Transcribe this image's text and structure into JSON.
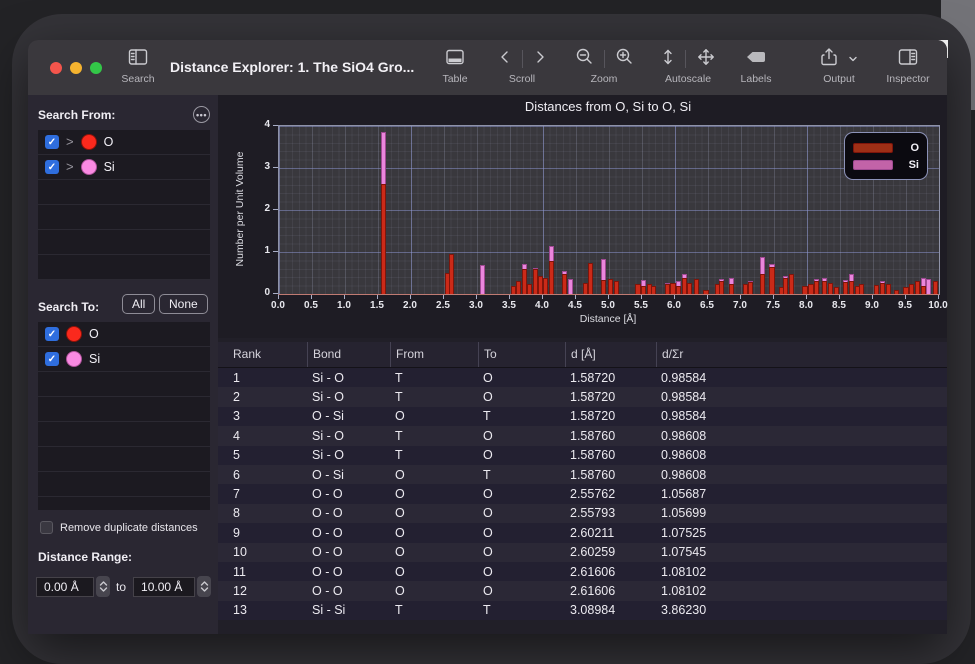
{
  "window": {
    "title": "Distance Explorer: 1. The SiO4 Gro..."
  },
  "toolbar": {
    "search": "Search",
    "table": "Table",
    "scroll": "Scroll",
    "zoom": "Zoom",
    "autoscale": "Autoscale",
    "labels": "Labels",
    "output": "Output",
    "inspector": "Inspector"
  },
  "colors": {
    "checkbox_blue": "#2f6ede"
  },
  "sidebar": {
    "search_from": {
      "label": "Search From:",
      "rows": [
        {
          "element": "O",
          "checked": true,
          "color": "#fa291d",
          "rim": "#8f1309"
        },
        {
          "element": "Si",
          "checked": true,
          "color": "#f98ae2",
          "rim": "#b0549c"
        }
      ],
      "empty_rows": 4
    },
    "search_to": {
      "label": "Search To:",
      "all": "All",
      "none": "None",
      "rows": [
        {
          "element": "O",
          "checked": true,
          "color": "#fa291d",
          "rim": "#8f1309"
        },
        {
          "element": "Si",
          "checked": true,
          "color": "#f98ae2",
          "rim": "#b0549c"
        }
      ],
      "empty_rows": 5
    },
    "remove_duplicates": "Remove duplicate distances",
    "distance_range": {
      "label": "Distance Range:",
      "min": "0.00 Å",
      "to": "to",
      "max": "10.00 Å"
    }
  },
  "chart_data": {
    "type": "bar",
    "title": "Distances from O, Si to O, Si",
    "xlabel": "Distance [Å]",
    "ylabel": "Number per Unit Volume",
    "xlim": [
      0,
      10
    ],
    "ylim": [
      0,
      4
    ],
    "x_ticks": [
      "0.0",
      "0.5",
      "1.0",
      "1.5",
      "2.0",
      "2.5",
      "3.0",
      "3.5",
      "4.0",
      "4.5",
      "5.0",
      "5.5",
      "6.0",
      "6.5",
      "7.0",
      "7.5",
      "8.0",
      "8.5",
      "9.0",
      "9.5",
      "10.0"
    ],
    "y_ticks": [
      "0",
      "1",
      "2",
      "3",
      "4"
    ],
    "bar_width_angstrom": 0.08,
    "legend_position": "top-right",
    "grid": true,
    "series": [
      {
        "name": "O",
        "fill": "#cb2a18",
        "edge": "#7e150b",
        "legend_fill": "#9e2f16",
        "bars": [
          [
            1.59,
            2.62
          ],
          [
            2.56,
            0.5
          ],
          [
            2.61,
            0.95
          ],
          [
            3.55,
            0.19
          ],
          [
            3.63,
            0.31
          ],
          [
            3.72,
            0.6
          ],
          [
            3.8,
            0.24
          ],
          [
            3.88,
            0.59
          ],
          [
            3.96,
            0.43
          ],
          [
            4.04,
            0.39
          ],
          [
            4.13,
            0.79
          ],
          [
            4.33,
            0.48
          ],
          [
            4.65,
            0.27
          ],
          [
            4.72,
            0.75
          ],
          [
            4.92,
            0.33
          ],
          [
            5.02,
            0.35
          ],
          [
            5.11,
            0.31
          ],
          [
            5.44,
            0.23
          ],
          [
            5.52,
            0.2
          ],
          [
            5.61,
            0.23
          ],
          [
            5.68,
            0.19
          ],
          [
            5.89,
            0.23
          ],
          [
            5.97,
            0.27
          ],
          [
            6.05,
            0.2
          ],
          [
            6.14,
            0.39
          ],
          [
            6.22,
            0.27
          ],
          [
            6.32,
            0.35
          ],
          [
            6.47,
            0.1
          ],
          [
            6.64,
            0.23
          ],
          [
            6.71,
            0.31
          ],
          [
            6.86,
            0.25
          ],
          [
            7.07,
            0.23
          ],
          [
            7.14,
            0.29
          ],
          [
            7.33,
            0.47
          ],
          [
            7.47,
            0.64
          ],
          [
            7.62,
            0.17
          ],
          [
            7.67,
            0.39
          ],
          [
            7.77,
            0.47
          ],
          [
            7.97,
            0.19
          ],
          [
            8.06,
            0.23
          ],
          [
            8.15,
            0.31
          ],
          [
            8.27,
            0.31
          ],
          [
            8.35,
            0.27
          ],
          [
            8.45,
            0.17
          ],
          [
            8.59,
            0.29
          ],
          [
            8.67,
            0.31
          ],
          [
            8.76,
            0.19
          ],
          [
            8.82,
            0.25
          ],
          [
            9.05,
            0.21
          ],
          [
            9.14,
            0.27
          ],
          [
            9.23,
            0.23
          ],
          [
            9.35,
            0.1
          ],
          [
            9.5,
            0.17
          ],
          [
            9.59,
            0.23
          ],
          [
            9.67,
            0.31
          ],
          [
            9.77,
            0.2
          ],
          [
            9.95,
            0.31
          ]
        ]
      },
      {
        "name": "Si",
        "fill": "#ea86dc",
        "edge": "#a04a93",
        "legend_fill": "#c263a8",
        "bars": [
          [
            1.59,
            3.85
          ],
          [
            3.09,
            0.69
          ],
          [
            3.72,
            0.71
          ],
          [
            3.88,
            0.61
          ],
          [
            4.13,
            1.14
          ],
          [
            4.33,
            0.55
          ],
          [
            4.42,
            0.35
          ],
          [
            4.72,
            0.73
          ],
          [
            4.92,
            0.83
          ],
          [
            5.52,
            0.33
          ],
          [
            5.89,
            0.26
          ],
          [
            6.05,
            0.31
          ],
          [
            6.14,
            0.48
          ],
          [
            6.71,
            0.35
          ],
          [
            6.86,
            0.39
          ],
          [
            7.14,
            0.31
          ],
          [
            7.33,
            0.88
          ],
          [
            7.47,
            0.71
          ],
          [
            7.67,
            0.43
          ],
          [
            8.15,
            0.35
          ],
          [
            8.27,
            0.39
          ],
          [
            8.59,
            0.34
          ],
          [
            8.67,
            0.48
          ],
          [
            9.14,
            0.31
          ],
          [
            9.77,
            0.39
          ],
          [
            9.84,
            0.35
          ]
        ]
      }
    ]
  },
  "table": {
    "columns": [
      "Rank",
      "Bond",
      "From",
      "To",
      "d [Å]",
      "d/Σr"
    ],
    "rows": [
      [
        "1",
        "Si - O",
        "T",
        "O",
        "1.58720",
        "0.98584"
      ],
      [
        "2",
        "Si - O",
        "T",
        "O",
        "1.58720",
        "0.98584"
      ],
      [
        "3",
        "O - Si",
        "O",
        "T",
        "1.58720",
        "0.98584"
      ],
      [
        "4",
        "Si - O",
        "T",
        "O",
        "1.58760",
        "0.98608"
      ],
      [
        "5",
        "Si - O",
        "T",
        "O",
        "1.58760",
        "0.98608"
      ],
      [
        "6",
        "O - Si",
        "O",
        "T",
        "1.58760",
        "0.98608"
      ],
      [
        "7",
        "O - O",
        "O",
        "O",
        "2.55762",
        "1.05687"
      ],
      [
        "8",
        "O - O",
        "O",
        "O",
        "2.55793",
        "1.05699"
      ],
      [
        "9",
        "O - O",
        "O",
        "O",
        "2.60211",
        "1.07525"
      ],
      [
        "10",
        "O - O",
        "O",
        "O",
        "2.60259",
        "1.07545"
      ],
      [
        "11",
        "O - O",
        "O",
        "O",
        "2.61606",
        "1.08102"
      ],
      [
        "12",
        "O - O",
        "O",
        "O",
        "2.61606",
        "1.08102"
      ],
      [
        "13",
        "Si - Si",
        "T",
        "T",
        "3.08984",
        "3.86230"
      ]
    ]
  }
}
